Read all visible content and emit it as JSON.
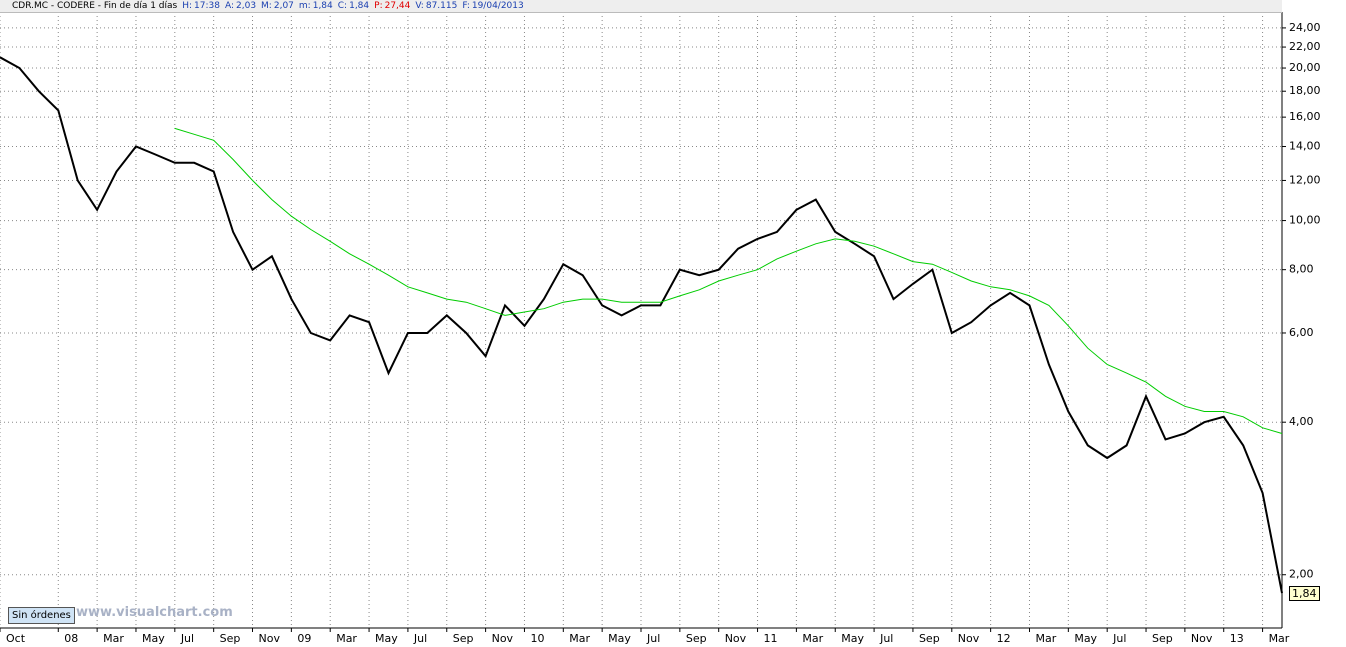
{
  "toolbar": {
    "items": [
      {
        "label": "CDR.MC - CODERE - Fin de día 1 días",
        "color": "#000000"
      },
      {
        "label": "H:",
        "value": "17:38",
        "color": "#1a3fb0"
      },
      {
        "label": "A:",
        "value": "2,03",
        "color": "#1a3fb0"
      },
      {
        "label": "M:",
        "value": "2,07",
        "color": "#1a3fb0"
      },
      {
        "label": "m:",
        "value": "1,84",
        "color": "#1a3fb0"
      },
      {
        "label": "C:",
        "value": "1,84",
        "color": "#1a3fb0"
      },
      {
        "label": "P:",
        "value": "27,44",
        "color": "#e00000"
      },
      {
        "label": "V:",
        "value": "87.115",
        "color": "#1a3fb0"
      },
      {
        "label": "F:",
        "value": "19/04/2013",
        "color": "#1a3fb0"
      }
    ]
  },
  "orders_button": "Sin órdenes",
  "watermark": "www.visualchart.com",
  "chart_data": {
    "type": "line",
    "log_y": true,
    "grid": true,
    "x": [
      "2007-10",
      "2007-11",
      "2007-12",
      "2008-01",
      "2008-02",
      "2008-03",
      "2008-04",
      "2008-05",
      "2008-06",
      "2008-07",
      "2008-08",
      "2008-09",
      "2008-10",
      "2008-11",
      "2008-12",
      "2009-01",
      "2009-02",
      "2009-03",
      "2009-04",
      "2009-05",
      "2009-06",
      "2009-07",
      "2009-08",
      "2009-09",
      "2009-10",
      "2009-11",
      "2009-12",
      "2010-01",
      "2010-02",
      "2010-03",
      "2010-04",
      "2010-05",
      "2010-06",
      "2010-07",
      "2010-08",
      "2010-09",
      "2010-10",
      "2010-11",
      "2010-12",
      "2011-01",
      "2011-02",
      "2011-03",
      "2011-04",
      "2011-05",
      "2011-06",
      "2011-07",
      "2011-08",
      "2011-09",
      "2011-10",
      "2011-11",
      "2011-12",
      "2012-01",
      "2012-02",
      "2012-03",
      "2012-04",
      "2012-05",
      "2012-06",
      "2012-07",
      "2012-08",
      "2012-09",
      "2012-10",
      "2012-11",
      "2012-12",
      "2013-01",
      "2013-02",
      "2013-03",
      "2013-04"
    ],
    "series": [
      {
        "color": "#000000",
        "values": [
          21,
          20,
          18,
          16.5,
          12,
          10.5,
          12.5,
          14,
          13.5,
          13,
          13,
          12.5,
          9.5,
          8,
          8.5,
          7,
          6,
          5.8,
          6.5,
          6.3,
          5.0,
          6.0,
          6.0,
          6.5,
          6.0,
          5.4,
          6.8,
          6.2,
          7.0,
          8.2,
          7.8,
          6.8,
          6.5,
          6.8,
          6.8,
          8.0,
          7.8,
          8.0,
          8.8,
          9.2,
          9.5,
          10.5,
          11.0,
          9.5,
          9.0,
          8.5,
          7.0,
          7.5,
          8.0,
          6.0,
          6.3,
          6.8,
          7.2,
          6.8,
          5.2,
          4.2,
          3.6,
          3.4,
          3.6,
          4.5,
          3.7,
          3.8,
          4.0,
          4.1,
          3.6,
          2.9,
          1.84
        ]
      },
      {
        "color": "#00cc00",
        "values": [
          null,
          null,
          null,
          null,
          null,
          null,
          null,
          null,
          null,
          15.2,
          14.8,
          14.4,
          13.2,
          12.0,
          11.0,
          10.2,
          9.6,
          9.1,
          8.6,
          8.2,
          7.8,
          7.4,
          7.2,
          7.0,
          6.9,
          6.7,
          6.5,
          6.6,
          6.7,
          6.9,
          7.0,
          7.0,
          6.9,
          6.9,
          6.9,
          7.1,
          7.3,
          7.6,
          7.8,
          8.0,
          8.4,
          8.7,
          9.0,
          9.2,
          9.1,
          8.9,
          8.6,
          8.3,
          8.2,
          7.9,
          7.6,
          7.4,
          7.3,
          7.1,
          6.8,
          6.2,
          5.6,
          5.2,
          5.0,
          4.8,
          4.5,
          4.3,
          4.2,
          4.2,
          4.1,
          3.9,
          3.8
        ]
      }
    ],
    "last_price_label": {
      "value": 1.84,
      "label": "1,84"
    },
    "xlim": [
      "2007-10",
      "2013-04"
    ],
    "xticks": [
      {
        "value": "2007-10",
        "label": "Oct"
      },
      {
        "value": "2008-01",
        "label": "08"
      },
      {
        "value": "2008-03",
        "label": "Mar"
      },
      {
        "value": "2008-05",
        "label": "May"
      },
      {
        "value": "2008-07",
        "label": "Jul"
      },
      {
        "value": "2008-09",
        "label": "Sep"
      },
      {
        "value": "2008-11",
        "label": "Nov"
      },
      {
        "value": "2009-01",
        "label": "09"
      },
      {
        "value": "2009-03",
        "label": "Mar"
      },
      {
        "value": "2009-05",
        "label": "May"
      },
      {
        "value": "2009-07",
        "label": "Jul"
      },
      {
        "value": "2009-09",
        "label": "Sep"
      },
      {
        "value": "2009-11",
        "label": "Nov"
      },
      {
        "value": "2010-01",
        "label": "10"
      },
      {
        "value": "2010-03",
        "label": "Mar"
      },
      {
        "value": "2010-05",
        "label": "May"
      },
      {
        "value": "2010-07",
        "label": "Jul"
      },
      {
        "value": "2010-09",
        "label": "Sep"
      },
      {
        "value": "2010-11",
        "label": "Nov"
      },
      {
        "value": "2011-01",
        "label": "11"
      },
      {
        "value": "2011-03",
        "label": "Mar"
      },
      {
        "value": "2011-05",
        "label": "May"
      },
      {
        "value": "2011-07",
        "label": "Jul"
      },
      {
        "value": "2011-09",
        "label": "Sep"
      },
      {
        "value": "2011-11",
        "label": "Nov"
      },
      {
        "value": "2012-01",
        "label": "12"
      },
      {
        "value": "2012-03",
        "label": "Mar"
      },
      {
        "value": "2012-05",
        "label": "May"
      },
      {
        "value": "2012-07",
        "label": "Jul"
      },
      {
        "value": "2012-09",
        "label": "Sep"
      },
      {
        "value": "2012-11",
        "label": "Nov"
      },
      {
        "value": "2013-01",
        "label": "13"
      },
      {
        "value": "2013-03",
        "label": "Mar"
      }
    ],
    "ylim": [
      1.57,
      25.8
    ],
    "yticks": [
      {
        "value": 2,
        "label": "2,00"
      },
      {
        "value": 4,
        "label": "4,00"
      },
      {
        "value": 6,
        "label": "6,00"
      },
      {
        "value": 8,
        "label": "8,00"
      },
      {
        "value": 10,
        "label": "10,00"
      },
      {
        "value": 12,
        "label": "12,00"
      },
      {
        "value": 14,
        "label": "14,00"
      },
      {
        "value": 16,
        "label": "16,00"
      },
      {
        "value": 18,
        "label": "18,00"
      },
      {
        "value": 20,
        "label": "20,00"
      },
      {
        "value": 22,
        "label": "22,00"
      },
      {
        "value": 24,
        "label": "24,00"
      }
    ]
  }
}
